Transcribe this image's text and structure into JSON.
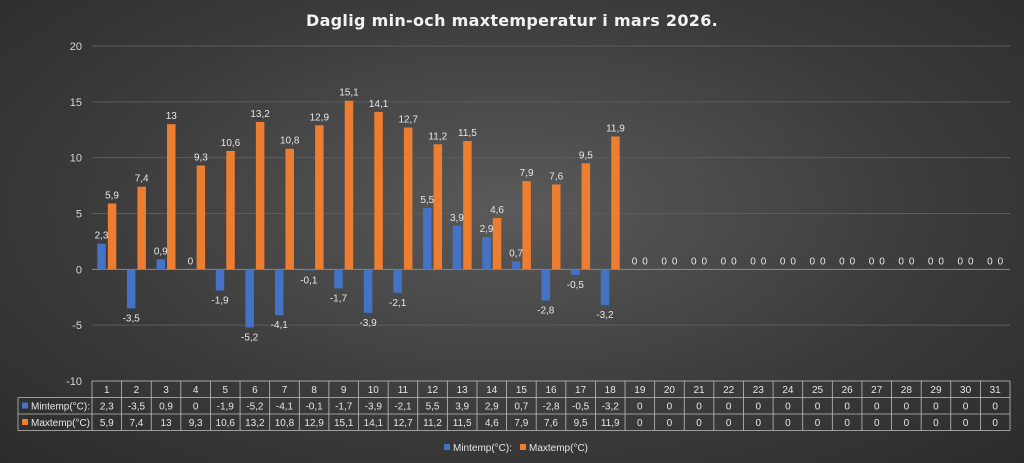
{
  "chart_data": {
    "type": "bar",
    "title": "Daglig min-och maxtemperatur i mars 2026.",
    "categories": [
      "1",
      "2",
      "3",
      "4",
      "5",
      "6",
      "7",
      "8",
      "9",
      "10",
      "11",
      "12",
      "13",
      "14",
      "15",
      "16",
      "17",
      "18",
      "19",
      "20",
      "21",
      "22",
      "23",
      "24",
      "25",
      "26",
      "27",
      "28",
      "29",
      "30",
      "31"
    ],
    "series": [
      {
        "name": "Mintemp(°C):",
        "color": "#4472c4",
        "values": [
          2.3,
          -3.5,
          0.9,
          0,
          -1.9,
          -5.2,
          -4.1,
          -0.1,
          -1.7,
          -3.9,
          -2.1,
          5.5,
          3.9,
          2.9,
          0.7,
          -2.8,
          -0.5,
          -3.2,
          0,
          0,
          0,
          0,
          0,
          0,
          0,
          0,
          0,
          0,
          0,
          0,
          0
        ],
        "labels": [
          "2,3",
          "-3,5",
          "0,9",
          "0",
          "-1,9",
          "-5,2",
          "-4,1",
          "-0,1",
          "-1,7",
          "-3,9",
          "-2,1",
          "5,5",
          "3,9",
          "2,9",
          "0,7",
          "-2,8",
          "-0,5",
          "-3,2",
          "0",
          "0",
          "0",
          "0",
          "0",
          "0",
          "0",
          "0",
          "0",
          "0",
          "0",
          "0",
          "0"
        ]
      },
      {
        "name": "Maxtemp(°C)",
        "color": "#ed7d31",
        "values": [
          5.9,
          7.4,
          13,
          9.3,
          10.6,
          13.2,
          10.8,
          12.9,
          15.1,
          14.1,
          12.7,
          11.2,
          11.5,
          4.6,
          7.9,
          7.6,
          9.5,
          11.9,
          0,
          0,
          0,
          0,
          0,
          0,
          0,
          0,
          0,
          0,
          0,
          0,
          0
        ],
        "labels": [
          "5,9",
          "7,4",
          "13",
          "9,3",
          "10,6",
          "13,2",
          "10,8",
          "12,9",
          "15,1",
          "14,1",
          "12,7",
          "11,2",
          "11,5",
          "4,6",
          "7,9",
          "7,6",
          "9,5",
          "11,9",
          "0",
          "0",
          "0",
          "0",
          "0",
          "0",
          "0",
          "0",
          "0",
          "0",
          "0",
          "0",
          "0"
        ]
      }
    ],
    "ylim": [
      -10,
      20
    ],
    "yticks": [
      "-10",
      "-5",
      "0",
      "5",
      "10",
      "15",
      "20"
    ],
    "grid": true,
    "legend_position": "bottom",
    "data_table": true
  }
}
